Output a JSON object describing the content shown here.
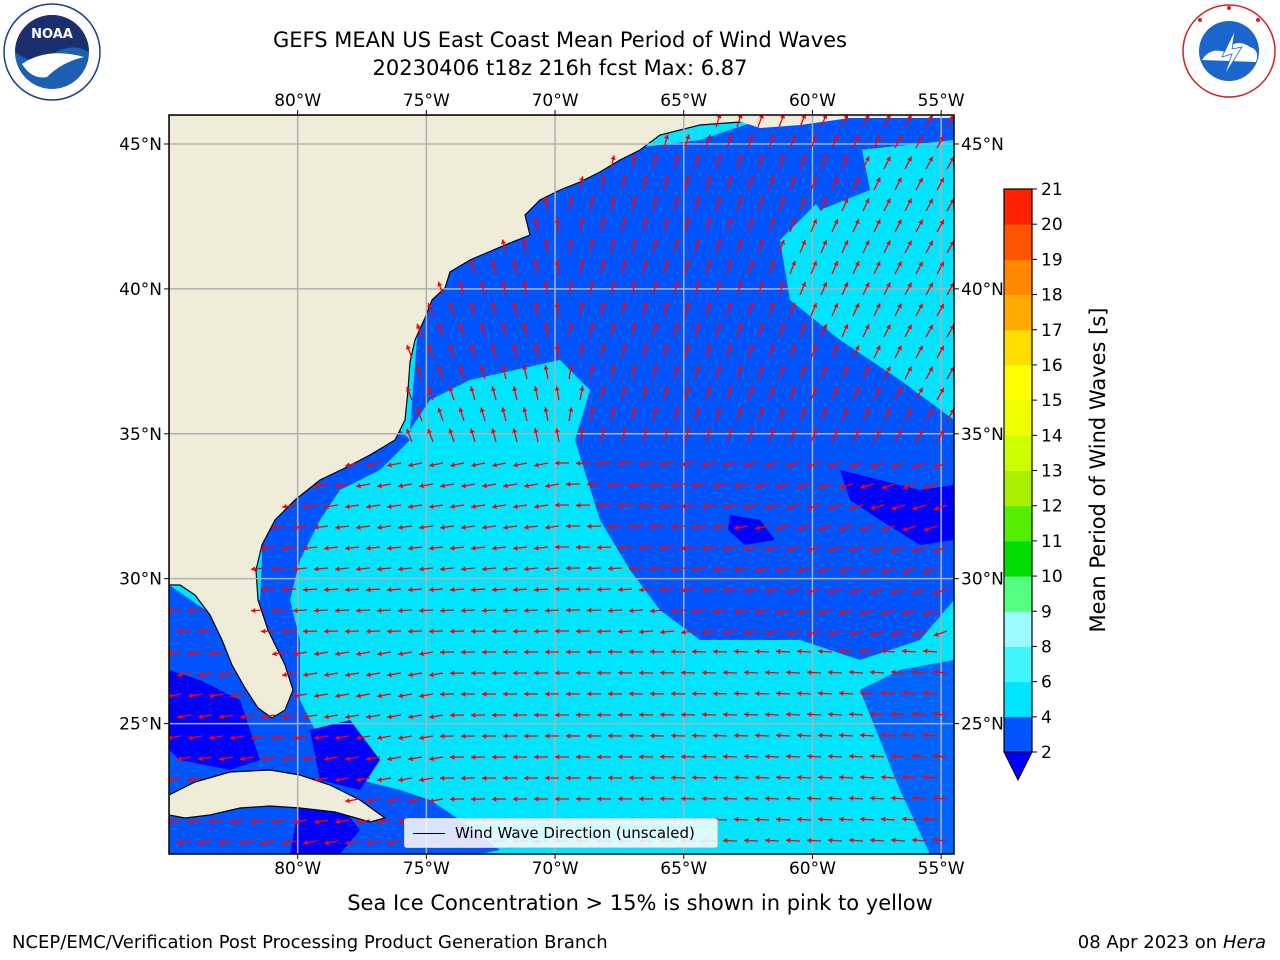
{
  "header": {
    "title_line1": "GEFS MEAN US East Coast Mean Period of Wind Waves",
    "title_line2": "20230406 t18z 216h fcst   Max: 6.87"
  },
  "logos": {
    "noaa_text": "NOAA",
    "noaa_ring_text": "NATIONAL OCEANIC AND ATMOSPHERIC ADMINISTRATION · U.S. DEPARTMENT OF COMMERCE",
    "nws_ring_text": "NATIONAL WEATHER SERVICE"
  },
  "map": {
    "lon_labels": [
      "80°W",
      "75°W",
      "70°W",
      "65°W",
      "60°W",
      "55°W"
    ],
    "lat_labels": [
      "45°N",
      "40°N",
      "35°N",
      "30°N",
      "25°N"
    ],
    "lon_range": [
      -85,
      -54.5
    ],
    "lat_range": [
      20.5,
      46
    ],
    "grid": true,
    "legend_label": "Wind Wave Direction (unscaled)",
    "arrow_color": "#ff0000",
    "land_color": "#efedda"
  },
  "colorbar": {
    "label": "Mean Period of Wind Waves [s]",
    "ticks": [
      "2",
      "4",
      "6",
      "8",
      "9",
      "10",
      "11",
      "12",
      "13",
      "14",
      "15",
      "16",
      "17",
      "18",
      "19",
      "20",
      "21"
    ],
    "colors": [
      "#0055ff",
      "#00e5ff",
      "#3ff6ff",
      "#9cfbff",
      "#55ff7f",
      "#00dd00",
      "#55ee00",
      "#aaee00",
      "#ccff00",
      "#eeff00",
      "#ffff00",
      "#ffdd00",
      "#ffaa00",
      "#ff8800",
      "#ff5500",
      "#ff2200",
      "#ff0000"
    ],
    "under_color": "#0000ff"
  },
  "footer": {
    "note": "Sea Ice Concentration > 15% is shown in pink to yellow",
    "branch": "NCEP/EMC/Verification Post Processing Product Generation Branch",
    "date": "08 Apr 2023 on ",
    "machine": "Hera"
  }
}
